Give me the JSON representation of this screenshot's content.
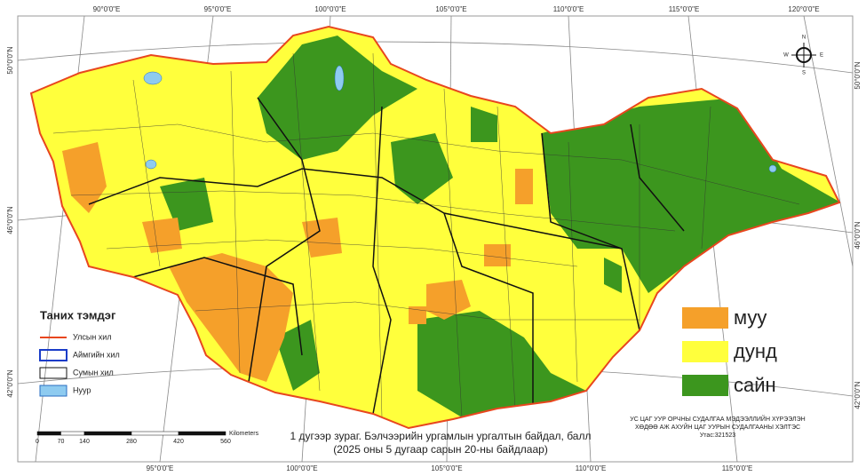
{
  "graticule": {
    "top": [
      "90°0'0\"E",
      "95°0'0\"E",
      "100°0'0\"E",
      "105°0'0\"E",
      "110°0'0\"E",
      "115°0'0\"E",
      "120°0'0\"E"
    ],
    "bottom": [
      "95°0'0\"E",
      "100°0'0\"E",
      "105°0'0\"E",
      "110°0'0\"E",
      "115°0'0\"E"
    ],
    "left": [
      "50°0'0\"N",
      "46°0'0\"N",
      "42°0'0\"N"
    ],
    "right": [
      "50°0'0\"N",
      "46°0'0\"N",
      "42°0'0\"N"
    ]
  },
  "compass": [
    "N",
    "E",
    "S",
    "W"
  ],
  "legend": {
    "title": "Таних тэмдэг",
    "items": [
      "Улсын хил",
      "Аймгийн хил",
      "Сумын хил",
      "Нуур"
    ]
  },
  "classes": [
    "муу",
    "дунд",
    "сайн"
  ],
  "scale_bar": {
    "unit": "Kilometers",
    "ticks": [
      0,
      70,
      140,
      280,
      420,
      560
    ]
  },
  "caption": [
    "1 дугээр зураг. Бэлчээрийн ургамлын ургалтын байдал, балл",
    "(2025 оны 5 дугаар сарын 20-ны байдлаар)"
  ],
  "agency": [
    "УС ЦАГ УУР ОРЧНЫ СУДАЛГАА МЭДЭЭЛЛИЙН ХҮРЭЭЛЭН",
    "ХӨДӨӨ АЖ АХУЙН ЦАГ УУРЫН СУДАЛГААНЫ ХЭЛТЭС",
    "Утас:321523"
  ]
}
